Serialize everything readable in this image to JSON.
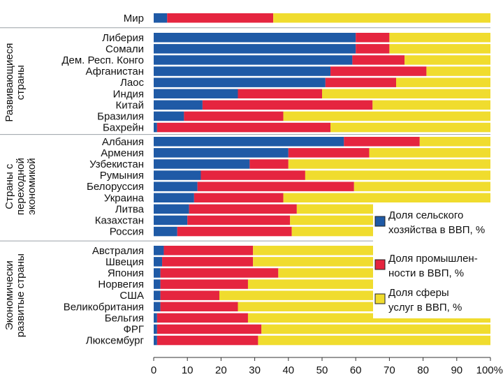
{
  "chart_data": {
    "type": "bar",
    "stacked": true,
    "orientation": "horizontal",
    "xlim": [
      0,
      100
    ],
    "ticks": [
      "0",
      "10",
      "20",
      "30",
      "40",
      "50",
      "60",
      "70",
      "80",
      "90",
      "100%"
    ],
    "series": [
      {
        "name": "Доля сельского хозяйства в ВВП, %",
        "color": "#1f5aa6"
      },
      {
        "name": "Доля промышлен-ности в ВВП, %",
        "color": "#e5253f"
      },
      {
        "name": "Доля сферы услуг в ВВП, %",
        "color": "#f0dc2e"
      }
    ],
    "legend": [
      {
        "line1": "Доля сельского",
        "line2": "хозяйства в ВВП, %"
      },
      {
        "line1": "Доля промышлен-",
        "line2": "ности в ВВП, %"
      },
      {
        "line1": "Доля сферы",
        "line2": "услуг в ВВП, %"
      }
    ],
    "groups": [
      {
        "label_lines": [],
        "rows": [
          {
            "name": "Мир",
            "agriculture": 4,
            "industry": 31.5,
            "services": 64.5
          }
        ]
      },
      {
        "label_lines": [
          "Развивающиеся",
          "страны"
        ],
        "rows": [
          {
            "name": "Либерия",
            "agriculture": 60,
            "industry": 10,
            "services": 30
          },
          {
            "name": "Сомали",
            "agriculture": 60,
            "industry": 10,
            "services": 30
          },
          {
            "name": "Дем. Респ. Конго",
            "agriculture": 59,
            "industry": 15.5,
            "services": 25.5
          },
          {
            "name": "Афганистан",
            "agriculture": 52.5,
            "industry": 28.5,
            "services": 19
          },
          {
            "name": "Лаос",
            "agriculture": 51,
            "industry": 21,
            "services": 28
          },
          {
            "name": "Индия",
            "agriculture": 25,
            "industry": 25,
            "services": 50
          },
          {
            "name": "Китай",
            "agriculture": 14.5,
            "industry": 50.5,
            "services": 35
          },
          {
            "name": "Бразилия",
            "agriculture": 9,
            "industry": 29.5,
            "services": 61.5
          },
          {
            "name": "Бахрейн",
            "agriculture": 1,
            "industry": 51.5,
            "services": 47.5
          }
        ]
      },
      {
        "label_lines": [
          "Страны с",
          "переходной",
          "экономикой"
        ],
        "rows": [
          {
            "name": "Албания",
            "agriculture": 56.5,
            "industry": 22.5,
            "services": 21
          },
          {
            "name": "Армения",
            "agriculture": 40,
            "industry": 24,
            "services": 36
          },
          {
            "name": "Узбекистан",
            "agriculture": 28.5,
            "industry": 11.5,
            "services": 60
          },
          {
            "name": "Румыния",
            "agriculture": 14,
            "industry": 31,
            "services": 55
          },
          {
            "name": "Белоруссия",
            "agriculture": 13,
            "industry": 46.5,
            "services": 40.5
          },
          {
            "name": "Украина",
            "agriculture": 12,
            "industry": 26.5,
            "services": 61.5
          },
          {
            "name": "Литва",
            "agriculture": 10.5,
            "industry": 32,
            "services": 57.5
          },
          {
            "name": "Казахстан",
            "agriculture": 10,
            "industry": 30.5,
            "services": 59.5
          },
          {
            "name": "Россия",
            "agriculture": 7,
            "industry": 34,
            "services": 59
          }
        ]
      },
      {
        "label_lines": [
          "Экономически",
          "развитые страны"
        ],
        "rows": [
          {
            "name": "Австралия",
            "agriculture": 3,
            "industry": 26.5,
            "services": 70.5
          },
          {
            "name": "Швеция",
            "agriculture": 2.5,
            "industry": 27,
            "services": 70.5
          },
          {
            "name": "Япония",
            "agriculture": 2,
            "industry": 35,
            "services": 63
          },
          {
            "name": "Норвегия",
            "agriculture": 2,
            "industry": 26,
            "services": 72
          },
          {
            "name": "США",
            "agriculture": 2,
            "industry": 17.5,
            "services": 80.5
          },
          {
            "name": "Великобритания",
            "agriculture": 2,
            "industry": 23,
            "services": 75
          },
          {
            "name": "Бельгия",
            "agriculture": 1,
            "industry": 27,
            "services": 72
          },
          {
            "name": "ФРГ",
            "agriculture": 1,
            "industry": 31,
            "services": 68
          },
          {
            "name": "Люксембург",
            "agriculture": 1,
            "industry": 30,
            "services": 69
          }
        ]
      }
    ]
  }
}
